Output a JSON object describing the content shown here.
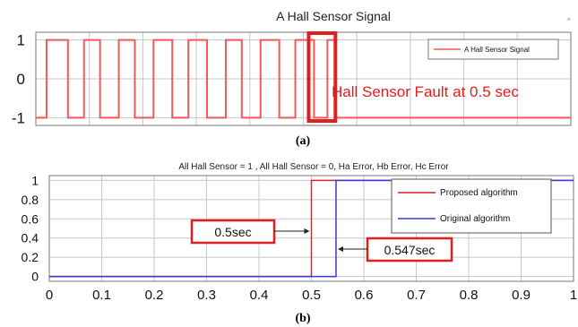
{
  "colors": {
    "signal": "#f25a5a",
    "proposed": "#e22121",
    "original": "#3a3adc",
    "annotation_red": "#e02020",
    "grid": "#c8c8c8"
  },
  "chart_data": [
    {
      "type": "line",
      "caption": "(a)",
      "title": "A Hall Sensor Signal",
      "ylim": [
        -1.2,
        1.2
      ],
      "y_ticks": [
        "1",
        "0",
        "-1"
      ],
      "y_tick_values": [
        1,
        0,
        -1
      ],
      "grid": true,
      "legend_position": "top-right",
      "series": [
        {
          "name": "A Hall Sensor Signal",
          "color_key": "signal",
          "x": [
            0,
            0.02,
            0.02,
            0.06,
            0.06,
            0.09,
            0.09,
            0.12,
            0.12,
            0.155,
            0.155,
            0.185,
            0.185,
            0.22,
            0.22,
            0.255,
            0.255,
            0.285,
            0.285,
            0.32,
            0.32,
            0.355,
            0.355,
            0.385,
            0.385,
            0.42,
            0.42,
            0.455,
            0.455,
            0.485,
            0.485,
            0.52,
            0.52,
            0.545,
            0.545,
            0.56,
            0.56,
            1.0
          ],
          "y": [
            -1,
            -1,
            1,
            1,
            -1,
            -1,
            1,
            1,
            -1,
            -1,
            1,
            1,
            -1,
            -1,
            1,
            1,
            -1,
            -1,
            1,
            1,
            -1,
            -1,
            1,
            1,
            -1,
            -1,
            1,
            1,
            -1,
            -1,
            1,
            1,
            -1,
            -1,
            1,
            1,
            -1,
            -1
          ]
        }
      ],
      "annotations": [
        {
          "text": "Hall Sensor Fault at 0.5 sec",
          "kind": "label"
        },
        {
          "kind": "highlight-box",
          "x_range": [
            0.51,
            0.56
          ]
        }
      ]
    },
    {
      "type": "line",
      "caption": "(b)",
      "title": "All Hall Sensor = 1 , All Hall Sensor = 0, Ha Error, Hb Error, Hc Error",
      "xlim": [
        0,
        1
      ],
      "ylim": [
        -0.05,
        1.05
      ],
      "x_ticks": [
        "0",
        "0.1",
        "0.2",
        "0.3",
        "0.4",
        "0.5",
        "0.6",
        "0.7",
        "0.8",
        "0.9",
        "1"
      ],
      "x_tick_values": [
        0,
        0.1,
        0.2,
        0.3,
        0.4,
        0.5,
        0.6,
        0.7,
        0.8,
        0.9,
        1
      ],
      "y_ticks": [
        "1",
        "0.8",
        "0.6",
        "0.4",
        "0.2",
        "0"
      ],
      "y_tick_values": [
        1,
        0.8,
        0.6,
        0.4,
        0.2,
        0
      ],
      "grid": true,
      "legend_position": "top-right",
      "series": [
        {
          "name": "Proposed algorithm",
          "color_key": "proposed",
          "x": [
            0,
            0.5,
            0.5,
            1.0
          ],
          "y": [
            0,
            0,
            1,
            1
          ]
        },
        {
          "name": "Original algorithm",
          "color_key": "original",
          "x": [
            0,
            0.547,
            0.547,
            1.0
          ],
          "y": [
            0,
            0,
            1,
            1
          ]
        }
      ],
      "annotations": [
        {
          "text": "0.5sec",
          "points_to_x": 0.5,
          "y": 0.45
        },
        {
          "text": "0.547sec",
          "points_to_x": 0.547,
          "y": 0.25
        }
      ]
    }
  ]
}
